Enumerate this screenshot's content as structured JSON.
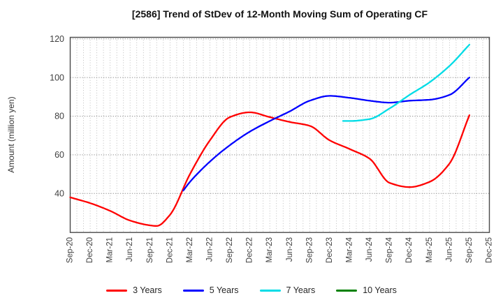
{
  "title": "[2586]  Trend of StDev of 12-Month Moving Sum of Operating CF",
  "y_axis": {
    "label": "Amount (million yen)",
    "ticks": [
      40,
      60,
      80,
      100,
      120
    ]
  },
  "x_axis": {
    "tick_labels": [
      "Sep-20",
      "Dec-20",
      "Mar-21",
      "Jun-21",
      "Sep-21",
      "Dec-21",
      "Mar-22",
      "Jun-22",
      "Sep-22",
      "Dec-22",
      "Mar-23",
      "Jun-23",
      "Sep-23",
      "Dec-23",
      "Mar-24",
      "Jun-24",
      "Sep-24",
      "Dec-24",
      "Mar-25",
      "Jun-25",
      "Sep-25",
      "Dec-25"
    ]
  },
  "legend": {
    "position": "bottom"
  },
  "colors": {
    "series_red": "#ff0000",
    "series_blue": "#0000ff",
    "series_cyan": "#00dce6",
    "series_green": "#008000",
    "grid_major": "#888888",
    "grid_minor": "#b5b5b5",
    "frame": "#4a4a4a",
    "tick_label": "#404040",
    "background": "#ffffff"
  },
  "chart_data": {
    "type": "line",
    "title": "[2586]  Trend of StDev of 12-Month Moving Sum of Operating CF",
    "xlabel": "",
    "ylabel": "Amount (million yen)",
    "x_unit": "month",
    "x_range": [
      "Sep-20",
      "Dec-25"
    ],
    "y_range": [
      20,
      121
    ],
    "y_ticks": [
      40,
      60,
      80,
      100,
      120
    ],
    "x_tick_labels": [
      "Sep-20",
      "Dec-20",
      "Mar-21",
      "Jun-21",
      "Sep-21",
      "Dec-21",
      "Mar-22",
      "Jun-22",
      "Sep-22",
      "Dec-22",
      "Mar-23",
      "Jun-23",
      "Sep-23",
      "Dec-23",
      "Mar-24",
      "Jun-24",
      "Sep-24",
      "Dec-24",
      "Mar-25",
      "Jun-25",
      "Sep-25",
      "Dec-25"
    ],
    "grid": true,
    "legend_position": "bottom",
    "series": [
      {
        "name": "3 Years",
        "color": "#ff0000",
        "points": [
          [
            "Sep-20",
            38
          ],
          [
            "Dec-20",
            35
          ],
          [
            "Mar-21",
            31
          ],
          [
            "Jun-21",
            26
          ],
          [
            "Sep-21",
            23.5
          ],
          [
            "Oct-21",
            23.2
          ],
          [
            "Dec-21",
            29
          ],
          [
            "Mar-22",
            50
          ],
          [
            "Jun-22",
            67.5
          ],
          [
            "Sep-22",
            79.5
          ],
          [
            "Dec-22",
            82
          ],
          [
            "Mar-23",
            79.5
          ],
          [
            "Jun-23",
            77
          ],
          [
            "Sep-23",
            75
          ],
          [
            "Dec-23",
            67.5
          ],
          [
            "Mar-24",
            63
          ],
          [
            "Jun-24",
            58
          ],
          [
            "Sep-24",
            45.5
          ],
          [
            "Dec-24",
            43.3
          ],
          [
            "Mar-25",
            46
          ],
          [
            "Jun-25",
            55.5
          ],
          [
            "Sep-25",
            80.5
          ]
        ]
      },
      {
        "name": "5 Years",
        "color": "#0000ff",
        "points": [
          [
            "Feb-22",
            41.5
          ],
          [
            "Mar-22",
            46
          ],
          [
            "Jun-22",
            56.5
          ],
          [
            "Sep-22",
            65
          ],
          [
            "Dec-22",
            72
          ],
          [
            "Mar-23",
            77.5
          ],
          [
            "Jun-23",
            82.5
          ],
          [
            "Sep-23",
            88
          ],
          [
            "Dec-23",
            90.5
          ],
          [
            "Mar-24",
            89.5
          ],
          [
            "Jun-24",
            88
          ],
          [
            "Sep-24",
            87
          ],
          [
            "Dec-24",
            88
          ],
          [
            "Mar-25",
            88.5
          ],
          [
            "Jun-25",
            91
          ],
          [
            "Sep-25",
            100
          ]
        ]
      },
      {
        "name": "7 Years",
        "color": "#00dce6",
        "points": [
          [
            "Feb-24",
            77.5
          ],
          [
            "Mar-24",
            77.5
          ],
          [
            "Jun-24",
            78.5
          ],
          [
            "Sep-24",
            84
          ],
          [
            "Dec-24",
            91
          ],
          [
            "Mar-25",
            97.5
          ],
          [
            "Jun-25",
            106
          ],
          [
            "Sep-25",
            117
          ]
        ]
      },
      {
        "name": "10 Years",
        "color": "#008000",
        "points": []
      }
    ]
  }
}
